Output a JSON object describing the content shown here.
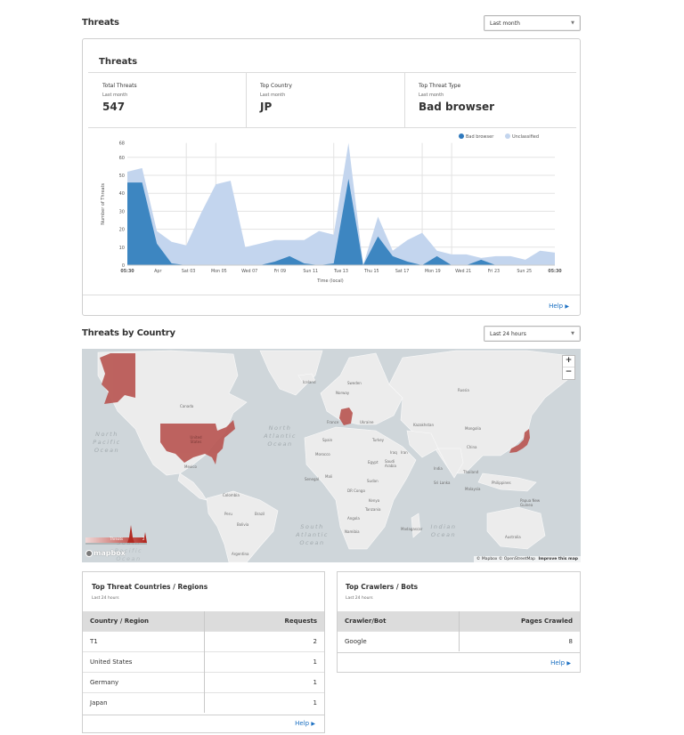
{
  "threats_section": {
    "title": "Threats",
    "range_select": {
      "value": "Last month"
    },
    "panel": {
      "title": "Threats",
      "kpis": [
        {
          "label": "Total Threats",
          "period": "Last month",
          "value": "547"
        },
        {
          "label": "Top Country",
          "period": "Last month",
          "value": "JP"
        },
        {
          "label": "Top Threat Type",
          "period": "Last month",
          "value": "Bad browser"
        }
      ],
      "help_label": "Help"
    }
  },
  "chart_data": {
    "type": "area",
    "title": "",
    "xlabel": "Time (local)",
    "ylabel": "Number of Threats",
    "ylim": [
      0,
      68
    ],
    "y_ticks": [
      "0",
      "10",
      "20",
      "30",
      "40",
      "50",
      "60",
      "68"
    ],
    "x_tick_labels": [
      "05:30",
      "Apr",
      "Sat 03",
      "Mon 05",
      "Wed 07",
      "Fri 09",
      "Sun 11",
      "Tue 13",
      "Thu 15",
      "Sat 17",
      "Mon 19",
      "Wed 21",
      "Fri 23",
      "Sun 25",
      "05:30"
    ],
    "grid": true,
    "legend_position": "top-right",
    "colors": {
      "bad_browser": "#3d86c1",
      "unclassified": "#c3d5ee"
    },
    "series": [
      {
        "name": "Bad browser",
        "values": [
          46,
          46,
          12,
          1,
          0,
          0,
          0,
          0,
          0,
          0,
          2,
          5,
          1,
          0,
          1,
          48,
          0,
          16,
          5,
          2,
          0,
          5,
          0,
          0,
          3,
          0,
          0,
          0,
          0,
          0
        ]
      },
      {
        "name": "Unclassified",
        "values": [
          52,
          54,
          19,
          13,
          11,
          29,
          45,
          47,
          10,
          12,
          14,
          14,
          14,
          19,
          17,
          68,
          0,
          27,
          8,
          14,
          18,
          8,
          6,
          6,
          4,
          5,
          5,
          3,
          8,
          7
        ]
      }
    ],
    "legend": [
      "Bad browser",
      "Unclassified"
    ]
  },
  "country_section": {
    "title": "Threats by Country",
    "range_select": {
      "value": "Last 24 hours"
    },
    "map": {
      "zoom_in": "+",
      "zoom_out": "−",
      "legend_label": "Threats",
      "legend_max": "2",
      "attribution": "© Mapbox © OpenStreetMap",
      "improve_link": "Improve this map",
      "logo": "mapbox",
      "highlight_color": "#b85450",
      "land_labels": {
        "canada": "Canada",
        "united_states": "United States",
        "mexico": "Mexico",
        "colombia": "Colombia",
        "peru": "Peru",
        "brazil": "Brazil",
        "bolivia": "Bolivia",
        "argentina": "Argentina",
        "russia": "Russia",
        "kazakhstan": "Kazakhstan",
        "mongolia": "Mongolia",
        "china": "China",
        "india": "India",
        "iran": "Iran",
        "iraq": "Iraq",
        "saudi_arabia": "Saudi Arabia",
        "egypt": "Egypt",
        "sudan": "Sudan",
        "mali": "Mali",
        "senegal": "Senegal",
        "morocco": "Morocco",
        "spain": "Spain",
        "france": "France",
        "ukraine": "Ukraine",
        "turkey": "Turkey",
        "sweden": "Sweden",
        "norway": "Norway",
        "tanzania": "Tanzania",
        "kenya": "Kenya",
        "angola": "Angola",
        "namibia": "Namibia",
        "madagascar": "Madagascar",
        "australia": "Australia",
        "philippines": "Philippines",
        "thailand": "Thailand",
        "malaysia": "Malaysia",
        "sri_lanka": "Sri Lanka",
        "papua_new_guinea": "Papua New Guinea",
        "japan": "Japan",
        "iceland": "Iceland",
        "dr_congo": "DR Congo"
      },
      "ocean_labels": {
        "north_pacific": "North Pacific Ocean",
        "north_atlantic": "North Atlantic Ocean",
        "south_atlantic": "South Atlantic Ocean",
        "south_pacific": "South Pacific Ocean",
        "indian": "Indian Ocean"
      }
    }
  },
  "top_countries": {
    "title": "Top Threat Countries / Regions",
    "period": "Last 24 hours",
    "columns": [
      "Country / Region",
      "Requests"
    ],
    "rows": [
      {
        "name": "T1",
        "value": "2"
      },
      {
        "name": "United States",
        "value": "1"
      },
      {
        "name": "Germany",
        "value": "1"
      },
      {
        "name": "Japan",
        "value": "1"
      }
    ],
    "help_label": "Help"
  },
  "top_crawlers": {
    "title": "Top Crawlers / Bots",
    "period": "Last 24 hours",
    "columns": [
      "Crawler/Bot",
      "Pages Crawled"
    ],
    "rows": [
      {
        "name": "Google",
        "value": "8"
      }
    ],
    "help_label": "Help"
  }
}
